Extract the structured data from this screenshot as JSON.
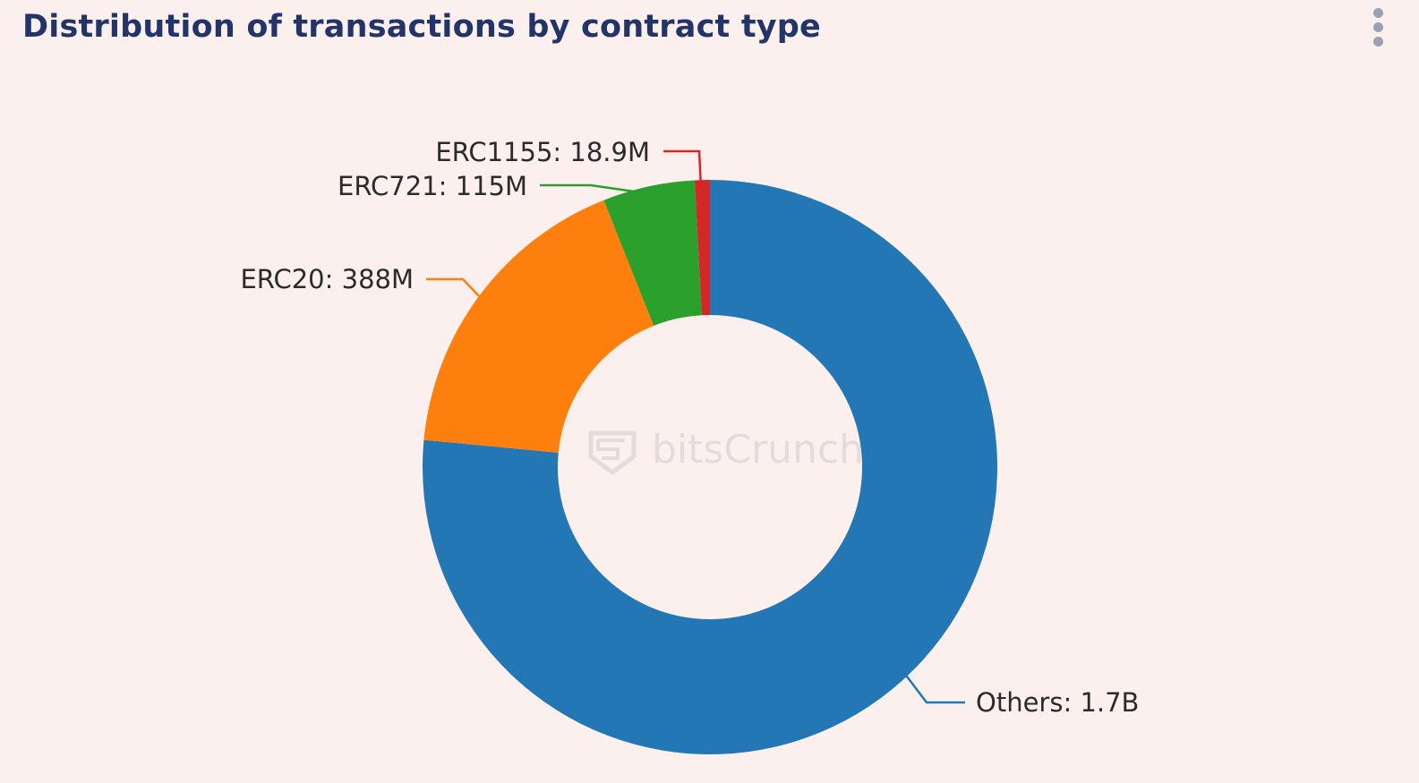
{
  "header": {
    "title": "Distribution of transactions by contract type"
  },
  "menu": {
    "icon": "more-vertical-icon",
    "color": "#9aa1b3"
  },
  "watermark": {
    "text": "bitsCrunch",
    "icon": "bitscrunch-logo-icon"
  },
  "chart_data": {
    "type": "pie",
    "donut": true,
    "title": "Distribution of transactions by contract type",
    "slices": [
      {
        "name": "Others",
        "value": 1700000000,
        "label": "Others: 1.7B",
        "color": "#2377b4"
      },
      {
        "name": "ERC20",
        "value": 388000000,
        "label": "ERC20: 388M",
        "color": "#fd7f0e"
      },
      {
        "name": "ERC721",
        "value": 115000000,
        "label": "ERC721: 115M",
        "color": "#2ca02c"
      },
      {
        "name": "ERC1155",
        "value": 18900000,
        "label": "ERC1155: 18.9M",
        "color": "#d62728"
      }
    ],
    "legend": "none"
  }
}
